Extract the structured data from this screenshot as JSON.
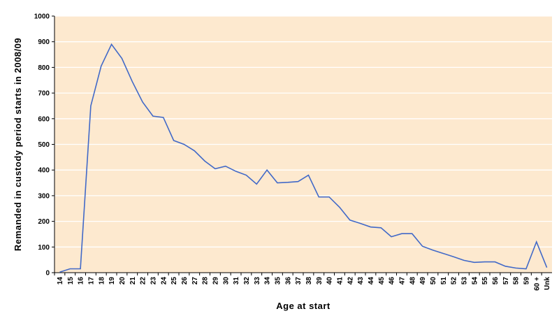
{
  "chart_data": {
    "type": "line",
    "title": "",
    "xlabel": "Age at start",
    "ylabel": "Remanded in custody period starts in 2008/09",
    "ylim": [
      0,
      1000
    ],
    "yticks": [
      "0",
      "100",
      "200",
      "300",
      "400",
      "500",
      "600",
      "700",
      "800",
      "900",
      "1000"
    ],
    "grid": true,
    "colors": {
      "plot_background": "#fde9cf",
      "line": "#4169c8",
      "gridline": "#ffffff"
    },
    "categories": [
      "14",
      "15",
      "16",
      "17",
      "18",
      "19",
      "20",
      "21",
      "22",
      "23",
      "24",
      "25",
      "26",
      "27",
      "28",
      "29",
      "30",
      "31",
      "32",
      "33",
      "34",
      "35",
      "36",
      "37",
      "38",
      "39",
      "40",
      "41",
      "42",
      "43",
      "44",
      "45",
      "46",
      "47",
      "48",
      "49",
      "50",
      "51",
      "52",
      "53",
      "54",
      "55",
      "56",
      "57",
      "58",
      "59",
      "60 +",
      "Unk"
    ],
    "series": [
      {
        "values": [
          2,
          15,
          15,
          650,
          805,
          890,
          835,
          745,
          665,
          610,
          605,
          515,
          500,
          475,
          435,
          405,
          415,
          395,
          380,
          345,
          400,
          350,
          352,
          355,
          380,
          295,
          295,
          255,
          205,
          192,
          178,
          175,
          140,
          152,
          152,
          103,
          88,
          75,
          62,
          48,
          40,
          42,
          42,
          25,
          18,
          15,
          120,
          20
        ]
      }
    ]
  }
}
